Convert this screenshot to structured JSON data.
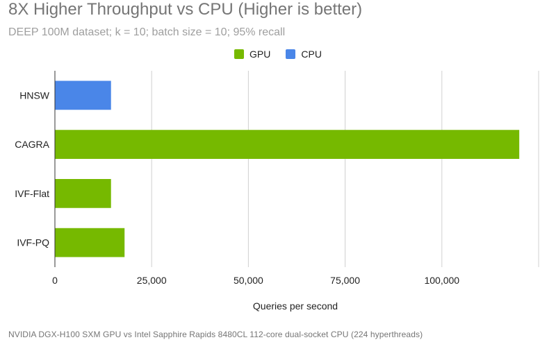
{
  "chart_data": {
    "type": "bar",
    "orientation": "horizontal",
    "title": "8X Higher Throughput vs CPU (Higher is better)",
    "subtitle": "DEEP 100M dataset; k = 10; batch size = 10; 95% recall",
    "xlabel": "Queries per second",
    "ylabel": "",
    "categories": [
      "HNSW",
      "CAGRA",
      "IVF-Flat",
      "IVF-PQ"
    ],
    "values": [
      14500,
      120000,
      14500,
      18000
    ],
    "bar_series": [
      "CPU",
      "GPU",
      "GPU",
      "GPU"
    ],
    "series": [
      {
        "name": "GPU",
        "color": "#76b900"
      },
      {
        "name": "CPU",
        "color": "#4a86e8"
      }
    ],
    "xlim": [
      0,
      125000
    ],
    "xticks": [
      0,
      25000,
      50000,
      75000,
      100000
    ],
    "xtick_labels": [
      "0",
      "25,000",
      "50,000",
      "75,000",
      "100,000"
    ],
    "grid": true,
    "legend_position": "top-center"
  },
  "footnote": "NVIDIA DGX-H100 SXM GPU vs Intel Sapphire Rapids 8480CL 112-core dual-socket CPU (224 hyperthreads)"
}
